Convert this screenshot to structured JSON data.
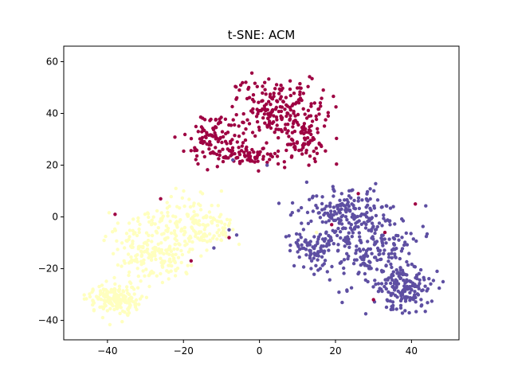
{
  "chart_data": {
    "type": "scatter",
    "title": "t-SNE: ACM",
    "xlabel": "",
    "ylabel": "",
    "xlim": [
      -51.5,
      52.5
    ],
    "ylim": [
      -47.5,
      66
    ],
    "xticks": [
      -40,
      -20,
      0,
      20,
      40
    ],
    "yticks": [
      -40,
      -20,
      0,
      20,
      40,
      60
    ],
    "grid": false,
    "colors": {
      "dark_red": "#9e0142",
      "slate_blue": "#5e4fa2",
      "pale_yellow": "#ffffbf"
    },
    "clusters": [
      {
        "color_key": "dark_red",
        "count": 450,
        "seed": 11,
        "ellipses": [
          {
            "weight": 0.4,
            "cx": 5,
            "cy": 42,
            "sx": 9,
            "sy": 10,
            "rot": 0
          },
          {
            "weight": 0.25,
            "cx": -12,
            "cy": 30,
            "sx": 6,
            "sy": 8,
            "rot": 0
          },
          {
            "weight": 0.2,
            "cx": 12,
            "cy": 30,
            "sx": 6,
            "sy": 8,
            "rot": 0
          },
          {
            "weight": 0.15,
            "cx": -2,
            "cy": 24,
            "sx": 7,
            "sy": 3,
            "rot": 0
          }
        ],
        "clip": {
          "x": [
            -32,
            25
          ],
          "y": [
            16,
            61
          ]
        }
      },
      {
        "color_key": "slate_blue",
        "count": 600,
        "seed": 23,
        "ellipses": [
          {
            "weight": 0.35,
            "cx": 30,
            "cy": -12,
            "sx": 9,
            "sy": 13,
            "rot": 0
          },
          {
            "weight": 0.25,
            "cx": 38,
            "cy": -28,
            "sx": 6,
            "sy": 7,
            "rot": 0
          },
          {
            "weight": 0.25,
            "cx": 20,
            "cy": 3,
            "sx": 10,
            "sy": 6,
            "rot": 0
          },
          {
            "weight": 0.15,
            "cx": 15,
            "cy": -12,
            "sx": 6,
            "sy": 8,
            "rot": 0
          }
        ],
        "clip": {
          "x": [
            5,
            49
          ],
          "y": [
            -42,
            22
          ]
        }
      },
      {
        "color_key": "pale_yellow",
        "count": 550,
        "seed": 37,
        "ellipses": [
          {
            "weight": 0.45,
            "cx": -28,
            "cy": -12,
            "sx": 9,
            "sy": 11,
            "rot": 0
          },
          {
            "weight": 0.3,
            "cx": -38,
            "cy": -32,
            "sx": 5,
            "sy": 5,
            "rot": 0
          },
          {
            "weight": 0.25,
            "cx": -15,
            "cy": -3,
            "sx": 7,
            "sy": 7,
            "rot": 0
          }
        ],
        "clip": {
          "x": [
            -47,
            -5
          ],
          "y": [
            -42,
            11
          ]
        }
      }
    ],
    "outliers": [
      {
        "color_key": "dark_red",
        "points": [
          [
            -38,
            1
          ],
          [
            -26,
            7
          ],
          [
            -18,
            -17
          ],
          [
            -8,
            -8
          ],
          [
            13,
            20
          ],
          [
            26,
            9
          ],
          [
            33,
            -6
          ],
          [
            41,
            5
          ],
          [
            19,
            -3
          ],
          [
            30,
            -32
          ]
        ]
      },
      {
        "color_key": "slate_blue",
        "points": [
          [
            -8,
            -5
          ],
          [
            -6,
            -7
          ],
          [
            -12,
            -12
          ],
          [
            2,
            20
          ],
          [
            -7,
            22
          ]
        ]
      },
      {
        "color_key": "pale_yellow",
        "points": [
          [
            -22,
            11
          ],
          [
            -15,
            9
          ],
          [
            -10,
            10
          ],
          [
            15,
            -6
          ]
        ]
      }
    ]
  }
}
